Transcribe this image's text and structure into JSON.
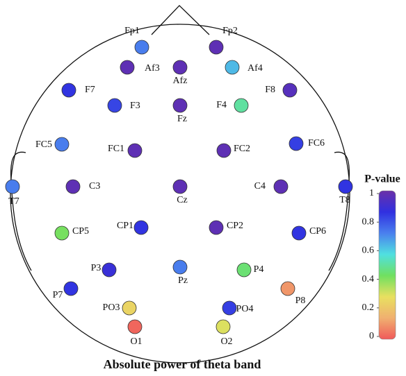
{
  "chart_data": {
    "type": "topomap",
    "title": "Absolute power of theta band",
    "colorbar_label": "P-value",
    "clim": [
      0,
      1
    ],
    "cticks": [
      0,
      0.2,
      0.4,
      0.6,
      0.8,
      1
    ],
    "colorscale": [
      "#f05a5a",
      "#f0b070",
      "#e8e060",
      "#70e060",
      "#50e0e0",
      "#4a80ee",
      "#3030e0",
      "#6a30a8"
    ],
    "electrodes": [
      "Fp1",
      "Fp2",
      "Af3",
      "Afz",
      "Af4",
      "F7",
      "F3",
      "Fz",
      "F4",
      "F8",
      "FC5",
      "FC1",
      "FC2",
      "FC6",
      "T7",
      "C3",
      "Cz",
      "C4",
      "T8",
      "CP5",
      "CP1",
      "CP2",
      "CP6",
      "P3",
      "Pz",
      "P4",
      "P7",
      "P8",
      "PO3",
      "PO4",
      "O1",
      "O2"
    ],
    "values": [
      0.72,
      0.97,
      0.97,
      0.97,
      0.63,
      0.85,
      0.82,
      0.97,
      0.5,
      0.95,
      0.72,
      0.97,
      0.97,
      0.83,
      0.72,
      0.97,
      0.97,
      0.97,
      0.85,
      0.42,
      0.85,
      0.97,
      0.85,
      0.88,
      0.72,
      0.45,
      0.85,
      0.1,
      0.25,
      0.83,
      0.02,
      0.3
    ]
  }
}
